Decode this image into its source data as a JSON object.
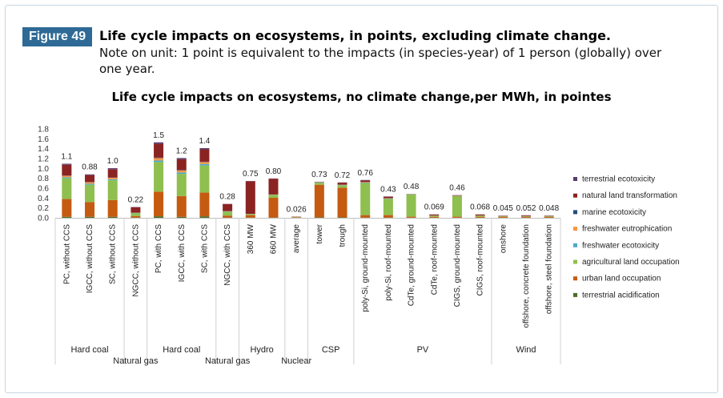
{
  "figure": {
    "badge": "Figure 49",
    "title": "Life cycle impacts on ecosystems, in points, excluding climate change.",
    "note": "Note on unit: 1 point is equivalent to the impacts (in species-year) of 1 person (globally) over one year."
  },
  "chart_data": {
    "type": "bar",
    "stacked": true,
    "title": "Life cycle impacts on ecosystems, no climate change,per MWh, in pointes",
    "xlabel": "",
    "ylabel": "",
    "ylim": [
      0,
      1.8
    ],
    "yticks": [
      "0.0",
      "0.2",
      "0.4",
      "0.6",
      "0.8",
      "1.0",
      "1.2",
      "1.4",
      "1.6",
      "1.8"
    ],
    "grid": false,
    "legend_position": "right",
    "categories": [
      "PC, without CCS",
      "IGCC, without CCS",
      "SC, without CCS",
      "NGCC, without CCS",
      "PC, with CCS",
      "IGCC, with CCS",
      "SC, with CCS",
      "NGCC, with CCS",
      "360 MW",
      "660 MW",
      "average",
      "tower",
      "trough",
      "poly-Si, ground-mounted",
      "poly-Si, roof-mounted",
      "CdTe, ground-mounted",
      "CdTe, roof-mounted",
      "CIGS, ground-mounted",
      "CIGS, roof-mounted",
      "onshore",
      "offshore, concrete foundation",
      "offshore, steel foundation"
    ],
    "groups": [
      {
        "name": "Hard coal",
        "start": 0,
        "end": 2,
        "row": 1
      },
      {
        "name": "Natural gas",
        "start": 3,
        "end": 3,
        "row": 2
      },
      {
        "name": "Hard coal",
        "start": 4,
        "end": 6,
        "row": 1
      },
      {
        "name": "Natural gas",
        "start": 7,
        "end": 7,
        "row": 2
      },
      {
        "name": "Hydro",
        "start": 8,
        "end": 9,
        "row": 1
      },
      {
        "name": "Nuclear",
        "start": 10,
        "end": 10,
        "row": 2
      },
      {
        "name": "CSP",
        "start": 11,
        "end": 12,
        "row": 1
      },
      {
        "name": "PV",
        "start": 13,
        "end": 18,
        "row": 1
      },
      {
        "name": "Wind",
        "start": 19,
        "end": 21,
        "row": 1
      }
    ],
    "total_labels": [
      "1.1",
      "0.88",
      "1.0",
      "0.22",
      "1.5",
      "1.2",
      "1.4",
      "0.28",
      "0.75",
      "0.80",
      "0.026",
      "0.73",
      "0.72",
      "0.76",
      "0.43",
      "0.48",
      "0.069",
      "0.46",
      "0.068",
      "0.045",
      "0.052",
      "0.048"
    ],
    "series": [
      {
        "name": "terrestrial acidification",
        "color": "#4e6b2a",
        "values": [
          0.02,
          0.02,
          0.02,
          0.005,
          0.03,
          0.02,
          0.03,
          0.005,
          0.005,
          0.005,
          0.002,
          0.01,
          0.01,
          0.005,
          0.005,
          0.003,
          0.002,
          0.003,
          0.002,
          0.002,
          0.002,
          0.002
        ]
      },
      {
        "name": "urban land occupation",
        "color": "#c55a11",
        "values": [
          0.36,
          0.3,
          0.34,
          0.03,
          0.5,
          0.42,
          0.48,
          0.04,
          0.05,
          0.4,
          0.01,
          0.66,
          0.6,
          0.05,
          0.05,
          0.02,
          0.02,
          0.02,
          0.02,
          0.02,
          0.02,
          0.02
        ]
      },
      {
        "name": "agricultural land occupation",
        "color": "#8fbf4f",
        "values": [
          0.42,
          0.35,
          0.4,
          0.06,
          0.6,
          0.45,
          0.55,
          0.08,
          0.02,
          0.06,
          0.006,
          0.04,
          0.05,
          0.65,
          0.33,
          0.45,
          0.02,
          0.42,
          0.02,
          0.01,
          0.01,
          0.01
        ]
      },
      {
        "name": "freshwater ecotoxicity",
        "color": "#4bacc6",
        "values": [
          0.02,
          0.02,
          0.02,
          0.003,
          0.03,
          0.03,
          0.03,
          0.005,
          0.002,
          0.003,
          0.001,
          0.005,
          0.005,
          0.008,
          0.006,
          0.002,
          0.002,
          0.002,
          0.002,
          0.002,
          0.002,
          0.002
        ]
      },
      {
        "name": "freshwater eutrophication",
        "color": "#f79646",
        "values": [
          0.03,
          0.03,
          0.03,
          0.005,
          0.05,
          0.04,
          0.04,
          0.005,
          0.003,
          0.003,
          0.001,
          0.005,
          0.005,
          0.01,
          0.005,
          0.002,
          0.002,
          0.002,
          0.002,
          0.002,
          0.002,
          0.002
        ]
      },
      {
        "name": "marine ecotoxicity",
        "color": "#1f4e79",
        "values": [
          0.005,
          0.005,
          0.005,
          0.002,
          0.008,
          0.006,
          0.006,
          0.002,
          0.001,
          0.001,
          0.001,
          0.002,
          0.002,
          0.003,
          0.002,
          0.001,
          0.001,
          0.001,
          0.001,
          0.001,
          0.001,
          0.001
        ]
      },
      {
        "name": "natural land transformation",
        "color": "#8b2323",
        "values": [
          0.22,
          0.14,
          0.17,
          0.11,
          0.28,
          0.22,
          0.25,
          0.14,
          0.66,
          0.32,
          0.004,
          0.004,
          0.04,
          0.03,
          0.03,
          0.003,
          0.02,
          0.01,
          0.02,
          0.007,
          0.014,
          0.008
        ]
      },
      {
        "name": "terrestrial ecotoxicity",
        "color": "#5b3d6e",
        "values": [
          0.02,
          0.015,
          0.02,
          0.005,
          0.03,
          0.025,
          0.025,
          0.005,
          0.005,
          0.005,
          0.001,
          0.005,
          0.005,
          0.01,
          0.005,
          0.002,
          0.002,
          0.002,
          0.002,
          0.001,
          0.001,
          0.001
        ]
      }
    ],
    "legend_order": [
      "terrestrial ecotoxicity",
      "natural land transformation",
      "marine ecotoxicity",
      "freshwater eutrophication",
      "freshwater ecotoxicity",
      "agricultural land occupation",
      "urban land occupation",
      "terrestrial acidification"
    ]
  }
}
